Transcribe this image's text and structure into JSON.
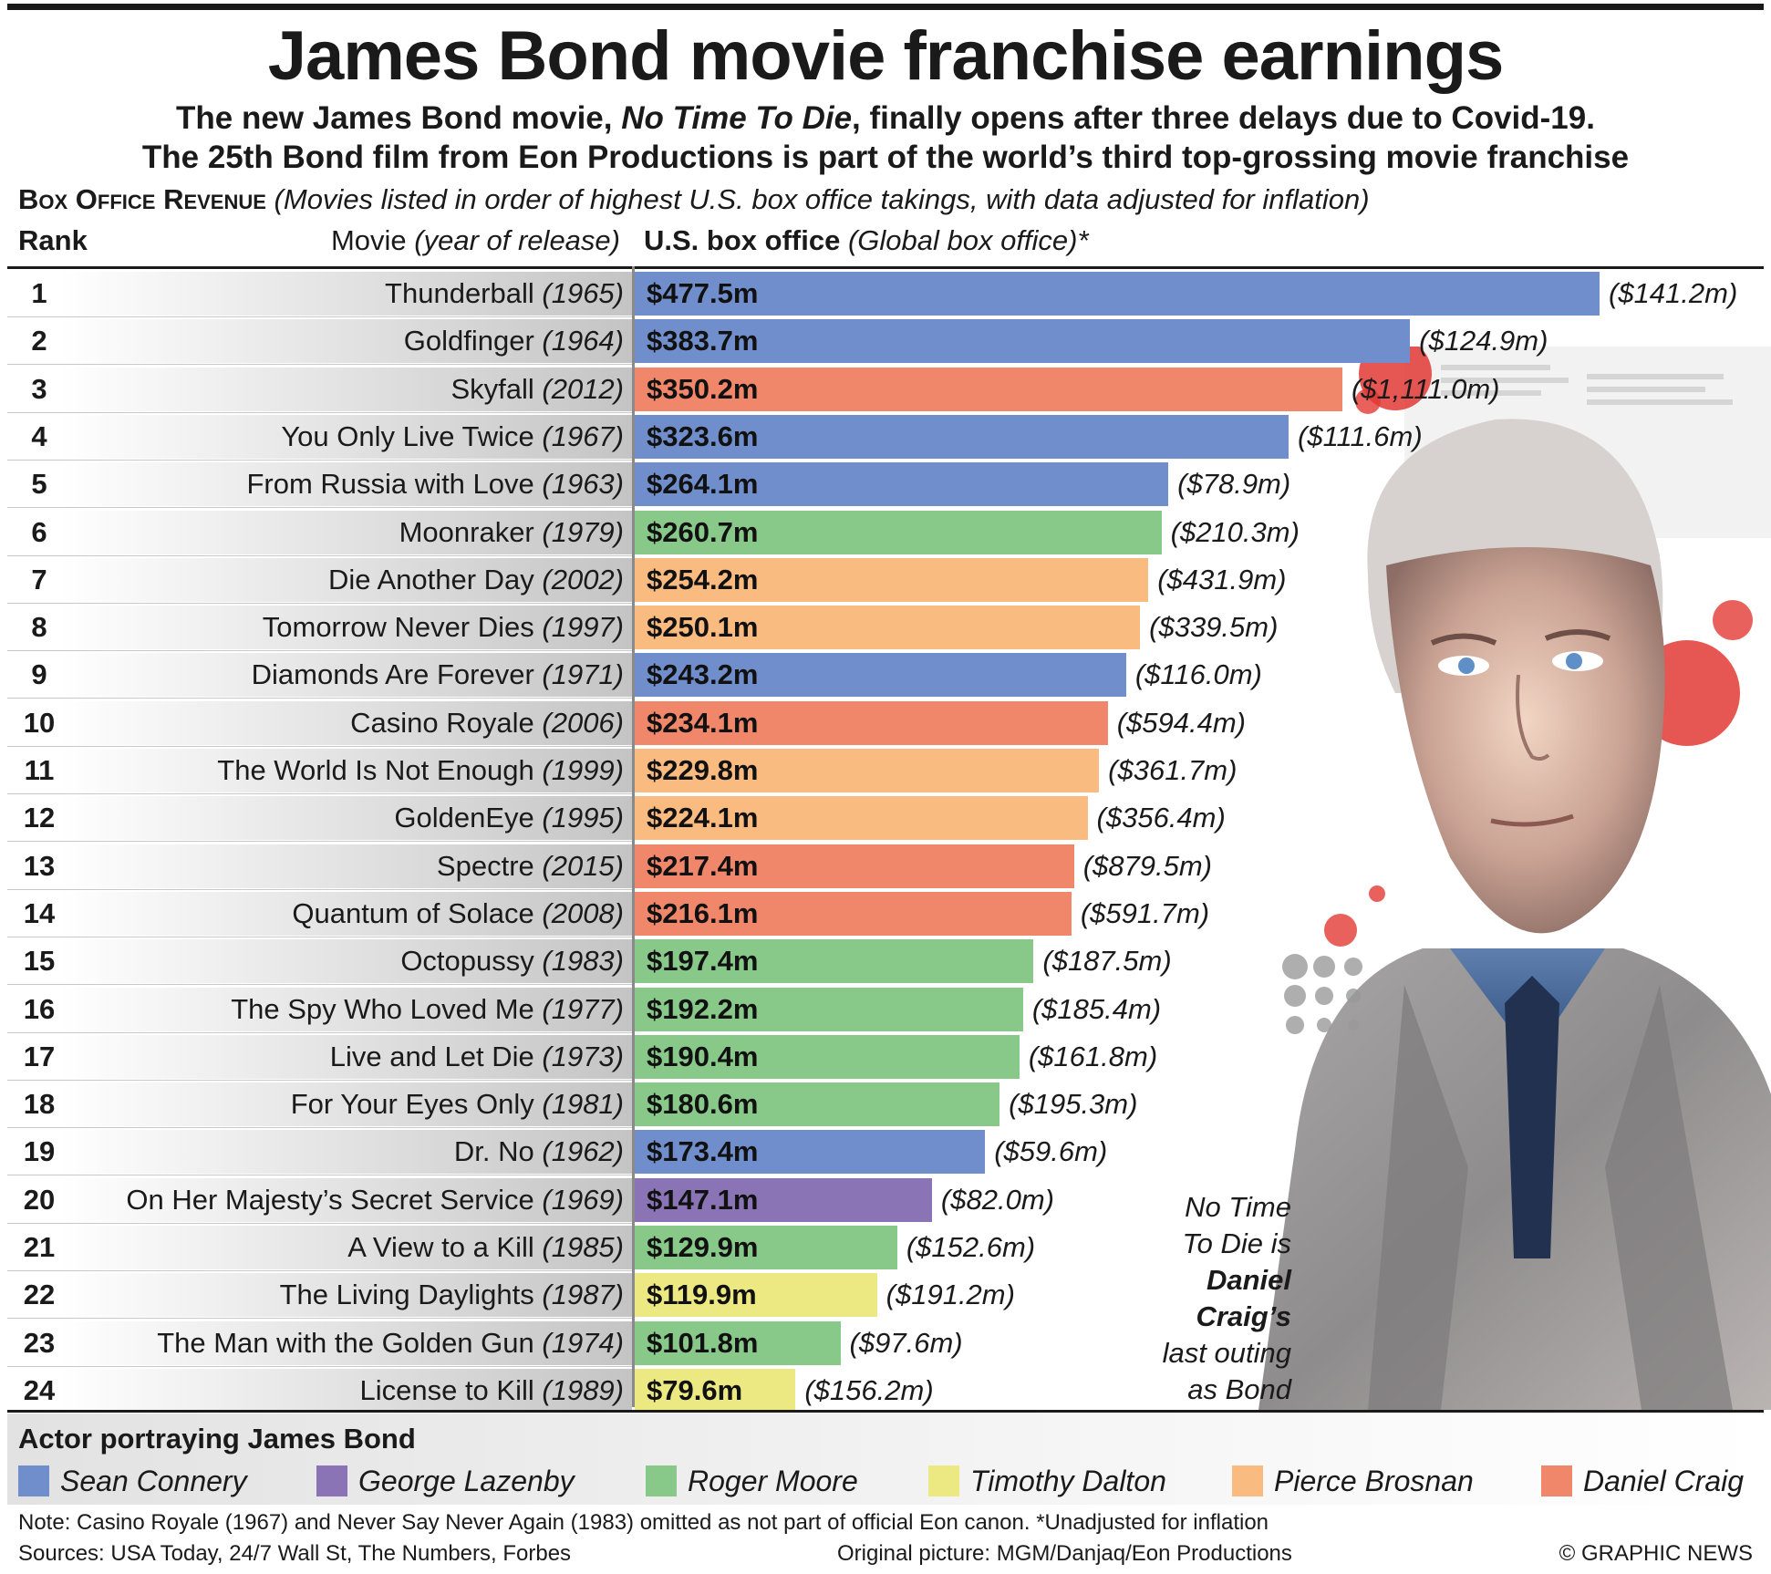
{
  "header": {
    "title": "James Bond movie franchise earnings",
    "subtitle_line1_a": "The new James Bond movie, ",
    "subtitle_line1_italic": "No Time To Die",
    "subtitle_line1_b": ", finally opens after three delays due to Covid-19.",
    "subtitle_line2": "The 25th Bond film from Eon Productions is part of the world’s third top-grossing movie franchise",
    "section_label": "Box Office Revenue",
    "section_note": "(Movies listed in order of highest U.S. box office takings, with data adjusted for inflation)"
  },
  "columns": {
    "rank": "Rank",
    "movie": "Movie",
    "movie_note": "(year of release)",
    "box": "U.S. box office",
    "box_note": "(Global box office)*"
  },
  "chart_data": {
    "type": "bar",
    "orientation": "horizontal",
    "value_unit": "$m",
    "x": [
      "Thunderball",
      "Goldfinger",
      "Skyfall",
      "You Only Live Twice",
      "From Russia with Love",
      "Moonraker",
      "Die Another Day",
      "Tomorrow Never Dies",
      "Diamonds Are Forever",
      "Casino Royale",
      "The World Is Not Enough",
      "GoldenEye",
      "Spectre",
      "Quantum of Solace",
      "Octopussy",
      "The Spy Who Loved Me",
      "Live and Let Die",
      "For Your Eyes Only",
      "Dr. No",
      "On Her Majesty’s Secret Service",
      "A View to a Kill",
      "The Living Daylights",
      "The Man with the Golden Gun",
      "License to Kill"
    ],
    "rows": [
      {
        "rank": "1",
        "movie": "Thunderball",
        "year": "(1965)",
        "us": 477.5,
        "us_label": "$477.5m",
        "global_label": "($141.2m)",
        "actor": "Sean Connery"
      },
      {
        "rank": "2",
        "movie": "Goldfinger",
        "year": "(1964)",
        "us": 383.7,
        "us_label": "$383.7m",
        "global_label": "($124.9m)",
        "actor": "Sean Connery"
      },
      {
        "rank": "3",
        "movie": "Skyfall",
        "year": "(2012)",
        "us": 350.2,
        "us_label": "$350.2m",
        "global_label": "($1,111.0m)",
        "actor": "Daniel Craig"
      },
      {
        "rank": "4",
        "movie": "You Only Live Twice",
        "year": "(1967)",
        "us": 323.6,
        "us_label": "$323.6m",
        "global_label": "($111.6m)",
        "actor": "Sean Connery"
      },
      {
        "rank": "5",
        "movie": "From Russia with Love",
        "year": "(1963)",
        "us": 264.1,
        "us_label": "$264.1m",
        "global_label": "($78.9m)",
        "actor": "Sean Connery"
      },
      {
        "rank": "6",
        "movie": "Moonraker",
        "year": "(1979)",
        "us": 260.7,
        "us_label": "$260.7m",
        "global_label": "($210.3m)",
        "actor": "Roger Moore"
      },
      {
        "rank": "7",
        "movie": "Die Another Day",
        "year": "(2002)",
        "us": 254.2,
        "us_label": "$254.2m",
        "global_label": "($431.9m)",
        "actor": "Pierce Brosnan"
      },
      {
        "rank": "8",
        "movie": "Tomorrow Never Dies",
        "year": "(1997)",
        "us": 250.1,
        "us_label": "$250.1m",
        "global_label": "($339.5m)",
        "actor": "Pierce Brosnan"
      },
      {
        "rank": "9",
        "movie": "Diamonds Are Forever",
        "year": "(1971)",
        "us": 243.2,
        "us_label": "$243.2m",
        "global_label": "($116.0m)",
        "actor": "Sean Connery"
      },
      {
        "rank": "10",
        "movie": "Casino Royale",
        "year": "(2006)",
        "us": 234.1,
        "us_label": "$234.1m",
        "global_label": "($594.4m)",
        "actor": "Daniel Craig"
      },
      {
        "rank": "11",
        "movie": "The World Is Not Enough",
        "year": "(1999)",
        "us": 229.8,
        "us_label": "$229.8m",
        "global_label": "($361.7m)",
        "actor": "Pierce Brosnan"
      },
      {
        "rank": "12",
        "movie": "GoldenEye",
        "year": "(1995)",
        "us": 224.1,
        "us_label": "$224.1m",
        "global_label": "($356.4m)",
        "actor": "Pierce Brosnan"
      },
      {
        "rank": "13",
        "movie": "Spectre",
        "year": "(2015)",
        "us": 217.4,
        "us_label": "$217.4m",
        "global_label": "($879.5m)",
        "actor": "Daniel Craig"
      },
      {
        "rank": "14",
        "movie": "Quantum of Solace",
        "year": "(2008)",
        "us": 216.1,
        "us_label": "$216.1m",
        "global_label": "($591.7m)",
        "actor": "Daniel Craig"
      },
      {
        "rank": "15",
        "movie": "Octopussy",
        "year": "(1983)",
        "us": 197.4,
        "us_label": "$197.4m",
        "global_label": "($187.5m)",
        "actor": "Roger Moore"
      },
      {
        "rank": "16",
        "movie": "The Spy Who Loved Me",
        "year": "(1977)",
        "us": 192.2,
        "us_label": "$192.2m",
        "global_label": "($185.4m)",
        "actor": "Roger Moore"
      },
      {
        "rank": "17",
        "movie": "Live and Let Die",
        "year": "(1973)",
        "us": 190.4,
        "us_label": "$190.4m",
        "global_label": "($161.8m)",
        "actor": "Roger Moore"
      },
      {
        "rank": "18",
        "movie": "For Your Eyes Only",
        "year": "(1981)",
        "us": 180.6,
        "us_label": "$180.6m",
        "global_label": "($195.3m)",
        "actor": "Roger Moore"
      },
      {
        "rank": "19",
        "movie": "Dr. No",
        "year": "(1962)",
        "us": 173.4,
        "us_label": "$173.4m",
        "global_label": "($59.6m)",
        "actor": "Sean Connery"
      },
      {
        "rank": "20",
        "movie": "On Her Majesty’s Secret Service",
        "year": "(1969)",
        "us": 147.1,
        "us_label": "$147.1m",
        "global_label": "($82.0m)",
        "actor": "George Lazenby"
      },
      {
        "rank": "21",
        "movie": "A View to a Kill",
        "year": "(1985)",
        "us": 129.9,
        "us_label": "$129.9m",
        "global_label": "($152.6m)",
        "actor": "Roger Moore"
      },
      {
        "rank": "22",
        "movie": "The Living Daylights",
        "year": "(1987)",
        "us": 119.9,
        "us_label": "$119.9m",
        "global_label": "($191.2m)",
        "actor": "Timothy Dalton"
      },
      {
        "rank": "23",
        "movie": "The Man with the Golden Gun",
        "year": "(1974)",
        "us": 101.8,
        "us_label": "$101.8m",
        "global_label": "($97.6m)",
        "actor": "Roger Moore"
      },
      {
        "rank": "24",
        "movie": "License to Kill",
        "year": "(1989)",
        "us": 79.6,
        "us_label": "$79.6m",
        "global_label": "($156.2m)",
        "actor": "Timothy Dalton"
      }
    ]
  },
  "legend": {
    "title": "Actor portraying James Bond",
    "items": [
      {
        "label": "Sean Connery",
        "color": "#6f8ecb"
      },
      {
        "label": "George Lazenby",
        "color": "#8a74b5"
      },
      {
        "label": "Roger Moore",
        "color": "#88c98a"
      },
      {
        "label": "Timothy Dalton",
        "color": "#ece882"
      },
      {
        "label": "Pierce Brosnan",
        "color": "#f9bb80"
      },
      {
        "label": "Daniel Craig",
        "color": "#f0876a"
      }
    ]
  },
  "callout": {
    "line1": "No Time",
    "line2": "To Die is",
    "line3": "Daniel",
    "line4": "Craig’s",
    "line5": "last outing",
    "line6": "as Bond"
  },
  "footer": {
    "note": "Note: Casino Royale (1967) and Never Say Never Again (1983) omitted as not part of official Eon canon. *Unadjusted for inflation",
    "sources": "Sources: USA Today, 24/7 Wall St, The Numbers, Forbes",
    "picture_credit": "Original picture: MGM/Danjaq/Eon Productions",
    "copyright": "© GRAPHIC NEWS"
  }
}
